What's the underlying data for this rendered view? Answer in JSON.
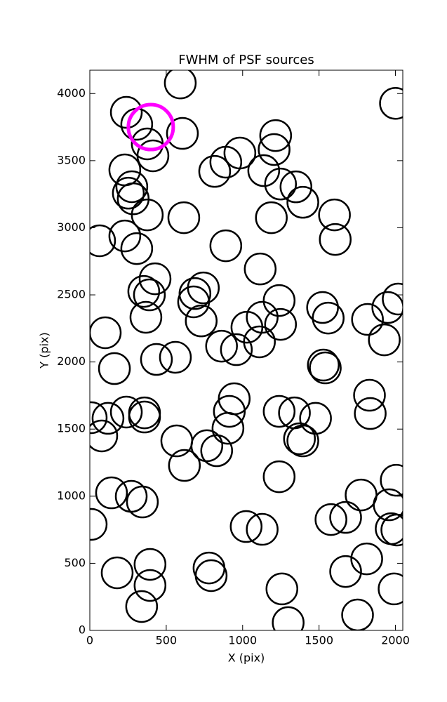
{
  "chart_data": {
    "type": "scatter",
    "title": "FWHM of PSF sources",
    "x_label": "X (pix)",
    "y_label": "Y (pix)",
    "xlim": [
      0,
      2048
    ],
    "ylim": [
      0,
      4174
    ],
    "xticks": [
      0,
      500,
      1000,
      1500,
      2000
    ],
    "yticks": [
      0,
      500,
      1000,
      1500,
      2000,
      2500,
      3000,
      3500,
      4000
    ],
    "grid": false,
    "series": [
      {
        "color": "#000000",
        "x": [
          592,
          2000,
          239,
          307,
          606,
          376,
          413,
          1216,
          1206,
          982,
          890,
          817,
          229,
          275,
          252,
          284,
          1138,
          1248,
          1349,
          1394,
          1601,
          1606,
          376,
          615,
          1188,
          64,
          229,
          307,
          890,
          427,
          353,
          390,
          367,
          1115,
          743,
          688,
          679,
          729,
          1239,
          1128,
          1248,
          1028,
          1110,
          862,
          959,
          1523,
          1560,
          1817,
          1950,
          2018,
          1927,
          101,
          161,
          436,
          560,
          1528,
          1541,
          1830,
          1835,
          945,
          913,
          904,
          9,
          119,
          78,
          239,
          358,
          358,
          1239,
          1339,
          1477,
          1372,
          1394,
          569,
          766,
          830,
          619,
          1239,
          142,
          271,
          344,
          1775,
          1959,
          2005,
          1674,
          1578,
          1972,
          2009,
          9,
          1023,
          1128,
          1812,
          1674,
          1991,
          1752,
          179,
          394,
          394,
          339,
          780,
          794,
          1257,
          1298
        ],
        "values": [
          4079,
          3927,
          3860,
          3771,
          3703,
          3625,
          3536,
          3687,
          3583,
          3557,
          3489,
          3420,
          3431,
          3306,
          3258,
          3216,
          3426,
          3326,
          3305,
          3190,
          3096,
          2913,
          3096,
          3075,
          3075,
          2903,
          2939,
          2845,
          2866,
          2620,
          2526,
          2500,
          2333,
          2693,
          2552,
          2510,
          2448,
          2306,
          2458,
          2333,
          2280,
          2259,
          2150,
          2118,
          2092,
          2406,
          2327,
          2317,
          2406,
          2469,
          2165,
          2218,
          1951,
          2019,
          2035,
          1977,
          1956,
          1752,
          1616,
          1726,
          1632,
          1506,
          1585,
          1580,
          1449,
          1627,
          1621,
          1590,
          1632,
          1621,
          1580,
          1428,
          1412,
          1412,
          1376,
          1339,
          1229,
          1145,
          1025,
          999,
          957,
          1009,
          936,
          1119,
          842,
          826,
          758,
          748,
          790,
          774,
          753,
          533,
          439,
          309,
          115,
          429,
          492,
          335,
          178,
          465,
          408,
          309,
          58
        ]
      },
      {
        "color": "#ff00ff",
        "x": [
          399
        ],
        "values": [
          3750
        ]
      }
    ]
  }
}
